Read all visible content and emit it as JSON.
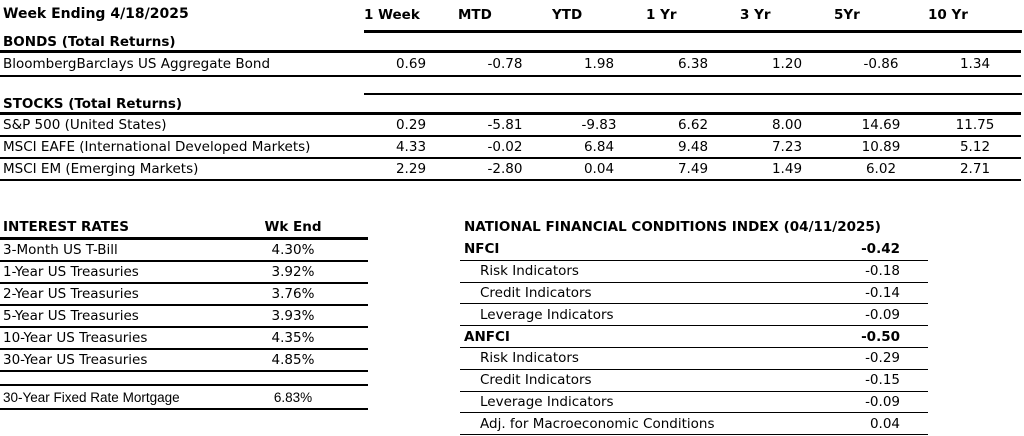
{
  "returns": {
    "title": "Week Ending 4/18/2025",
    "columns": [
      "1 Week",
      "MTD",
      "YTD",
      "1 Yr",
      "3 Yr",
      "5Yr",
      "10 Yr"
    ],
    "bonds": {
      "heading": "BONDS (Total Returns)",
      "row": {
        "label": "BloombergBarclays US Aggregate Bond",
        "values": [
          "0.69",
          "-0.78",
          "1.98",
          "6.38",
          "1.20",
          "-0.86",
          "1.34"
        ]
      }
    },
    "stocks": {
      "heading": "STOCKS (Total Returns)",
      "rows": [
        {
          "label": "S&P 500 (United States)",
          "values": [
            "0.29",
            "-5.81",
            "-9.83",
            "6.62",
            "8.00",
            "14.69",
            "11.75"
          ]
        },
        {
          "label": "MSCI EAFE (International Developed Markets)",
          "values": [
            "4.33",
            "-0.02",
            "6.84",
            "9.48",
            "7.23",
            "10.89",
            "5.12"
          ]
        },
        {
          "label": "MSCI EM (Emerging Markets)",
          "values": [
            "2.29",
            "-2.80",
            "0.04",
            "7.49",
            "1.49",
            "6.02",
            "2.71"
          ]
        }
      ]
    }
  },
  "interest_rates": {
    "title": "INTEREST RATES",
    "value_header": "Wk End",
    "rows": [
      {
        "label": "3-Month US T-Bill",
        "value": "4.30%"
      },
      {
        "label": "1-Year US Treasuries",
        "value": "3.92%"
      },
      {
        "label": "2-Year US Treasuries",
        "value": "3.76%"
      },
      {
        "label": "5-Year US Treasuries",
        "value": "3.93%"
      },
      {
        "label": "10-Year US Treasuries",
        "value": "4.35%"
      },
      {
        "label": "30-Year US Treasuries",
        "value": "4.85%"
      }
    ],
    "mortgage_row": {
      "label": "30-Year Fixed Rate Mortgage",
      "value": "6.83%"
    }
  },
  "nfci": {
    "title": "NATIONAL FINANCIAL CONDITIONS INDEX (04/11/2025)",
    "rows": [
      {
        "label": "NFCI",
        "value": "-0.42"
      },
      {
        "label": "Risk Indicators",
        "value": "-0.18"
      },
      {
        "label": "Credit Indicators",
        "value": "-0.14"
      },
      {
        "label": "Leverage Indicators",
        "value": "-0.09"
      },
      {
        "label": "ANFCI",
        "value": "-0.50"
      },
      {
        "label": "Risk Indicators",
        "value": "-0.29"
      },
      {
        "label": "Credit Indicators",
        "value": "-0.15"
      },
      {
        "label": "Leverage Indicators",
        "value": "-0.09"
      },
      {
        "label": "Adj. for Macroeconomic Conditions",
        "value": "0.04"
      }
    ]
  }
}
